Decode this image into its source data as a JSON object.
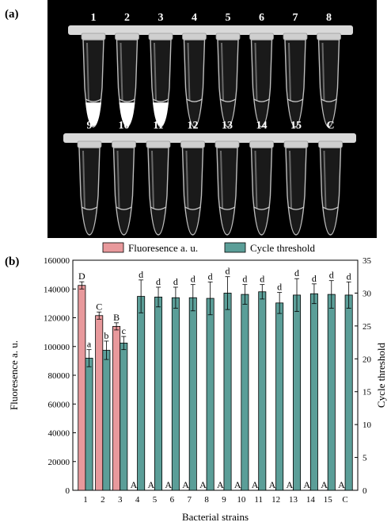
{
  "panel_a": {
    "label": "(a)",
    "row1_tube_labels": [
      "1",
      "2",
      "3",
      "4",
      "5",
      "6",
      "7",
      "8"
    ],
    "row2_tube_labels": [
      "9",
      "10",
      "11",
      "12",
      "13",
      "14",
      "15",
      "C"
    ],
    "row1_precipitate": [
      true,
      true,
      true,
      false,
      false,
      false,
      false,
      false
    ],
    "background_color": "#000000",
    "precipitate_color": "#ffffff"
  },
  "panel_b": {
    "label": "(b)"
  },
  "chart_data": {
    "type": "bar",
    "xlabel": "Bacterial strains",
    "ylabel": "Fluoresence a. u.",
    "y2label": "Cycle threshold",
    "ylim": [
      0,
      160000
    ],
    "y2lim": [
      0,
      35
    ],
    "yticks": [
      0,
      20000,
      40000,
      60000,
      80000,
      100000,
      120000,
      140000,
      160000
    ],
    "y2ticks": [
      0,
      5,
      10,
      15,
      20,
      25,
      30,
      35
    ],
    "categories": [
      "1",
      "2",
      "3",
      "4",
      "5",
      "6",
      "7",
      "8",
      "9",
      "10",
      "11",
      "12",
      "13",
      "14",
      "15",
      "C"
    ],
    "legend_position": "top",
    "series": [
      {
        "name": "Fluoresence a. u.",
        "axis": "left",
        "color": "#e8999c",
        "values": [
          142500,
          121500,
          114000,
          0,
          0,
          0,
          0,
          0,
          0,
          0,
          0,
          0,
          0,
          0,
          0,
          0
        ],
        "errors": [
          2500,
          2500,
          2500,
          0,
          0,
          0,
          0,
          0,
          0,
          0,
          0,
          0,
          0,
          0,
          0,
          0
        ],
        "letters": [
          "D",
          "C",
          "B",
          "A",
          "A",
          "A",
          "A",
          "A",
          "A",
          "A",
          "A",
          "A",
          "A",
          "A",
          "A",
          "A"
        ]
      },
      {
        "name": "Cycle threshold",
        "axis": "right",
        "color": "#5b9e98",
        "values": [
          20.1,
          21.3,
          22.4,
          29.5,
          29.4,
          29.3,
          29.3,
          29.2,
          30.0,
          29.8,
          30.2,
          28.5,
          29.7,
          29.9,
          29.8,
          29.7
        ],
        "errors": [
          1.3,
          1.4,
          1.0,
          2.5,
          1.5,
          1.6,
          2.0,
          2.5,
          2.5,
          1.5,
          1.1,
          1.6,
          2.5,
          1.5,
          2.1,
          2.0
        ],
        "letters": [
          "a",
          "b",
          "c",
          "d",
          "d",
          "d",
          "d",
          "d",
          "d",
          "d",
          "d",
          "d",
          "d",
          "d",
          "d",
          "d"
        ]
      }
    ]
  }
}
